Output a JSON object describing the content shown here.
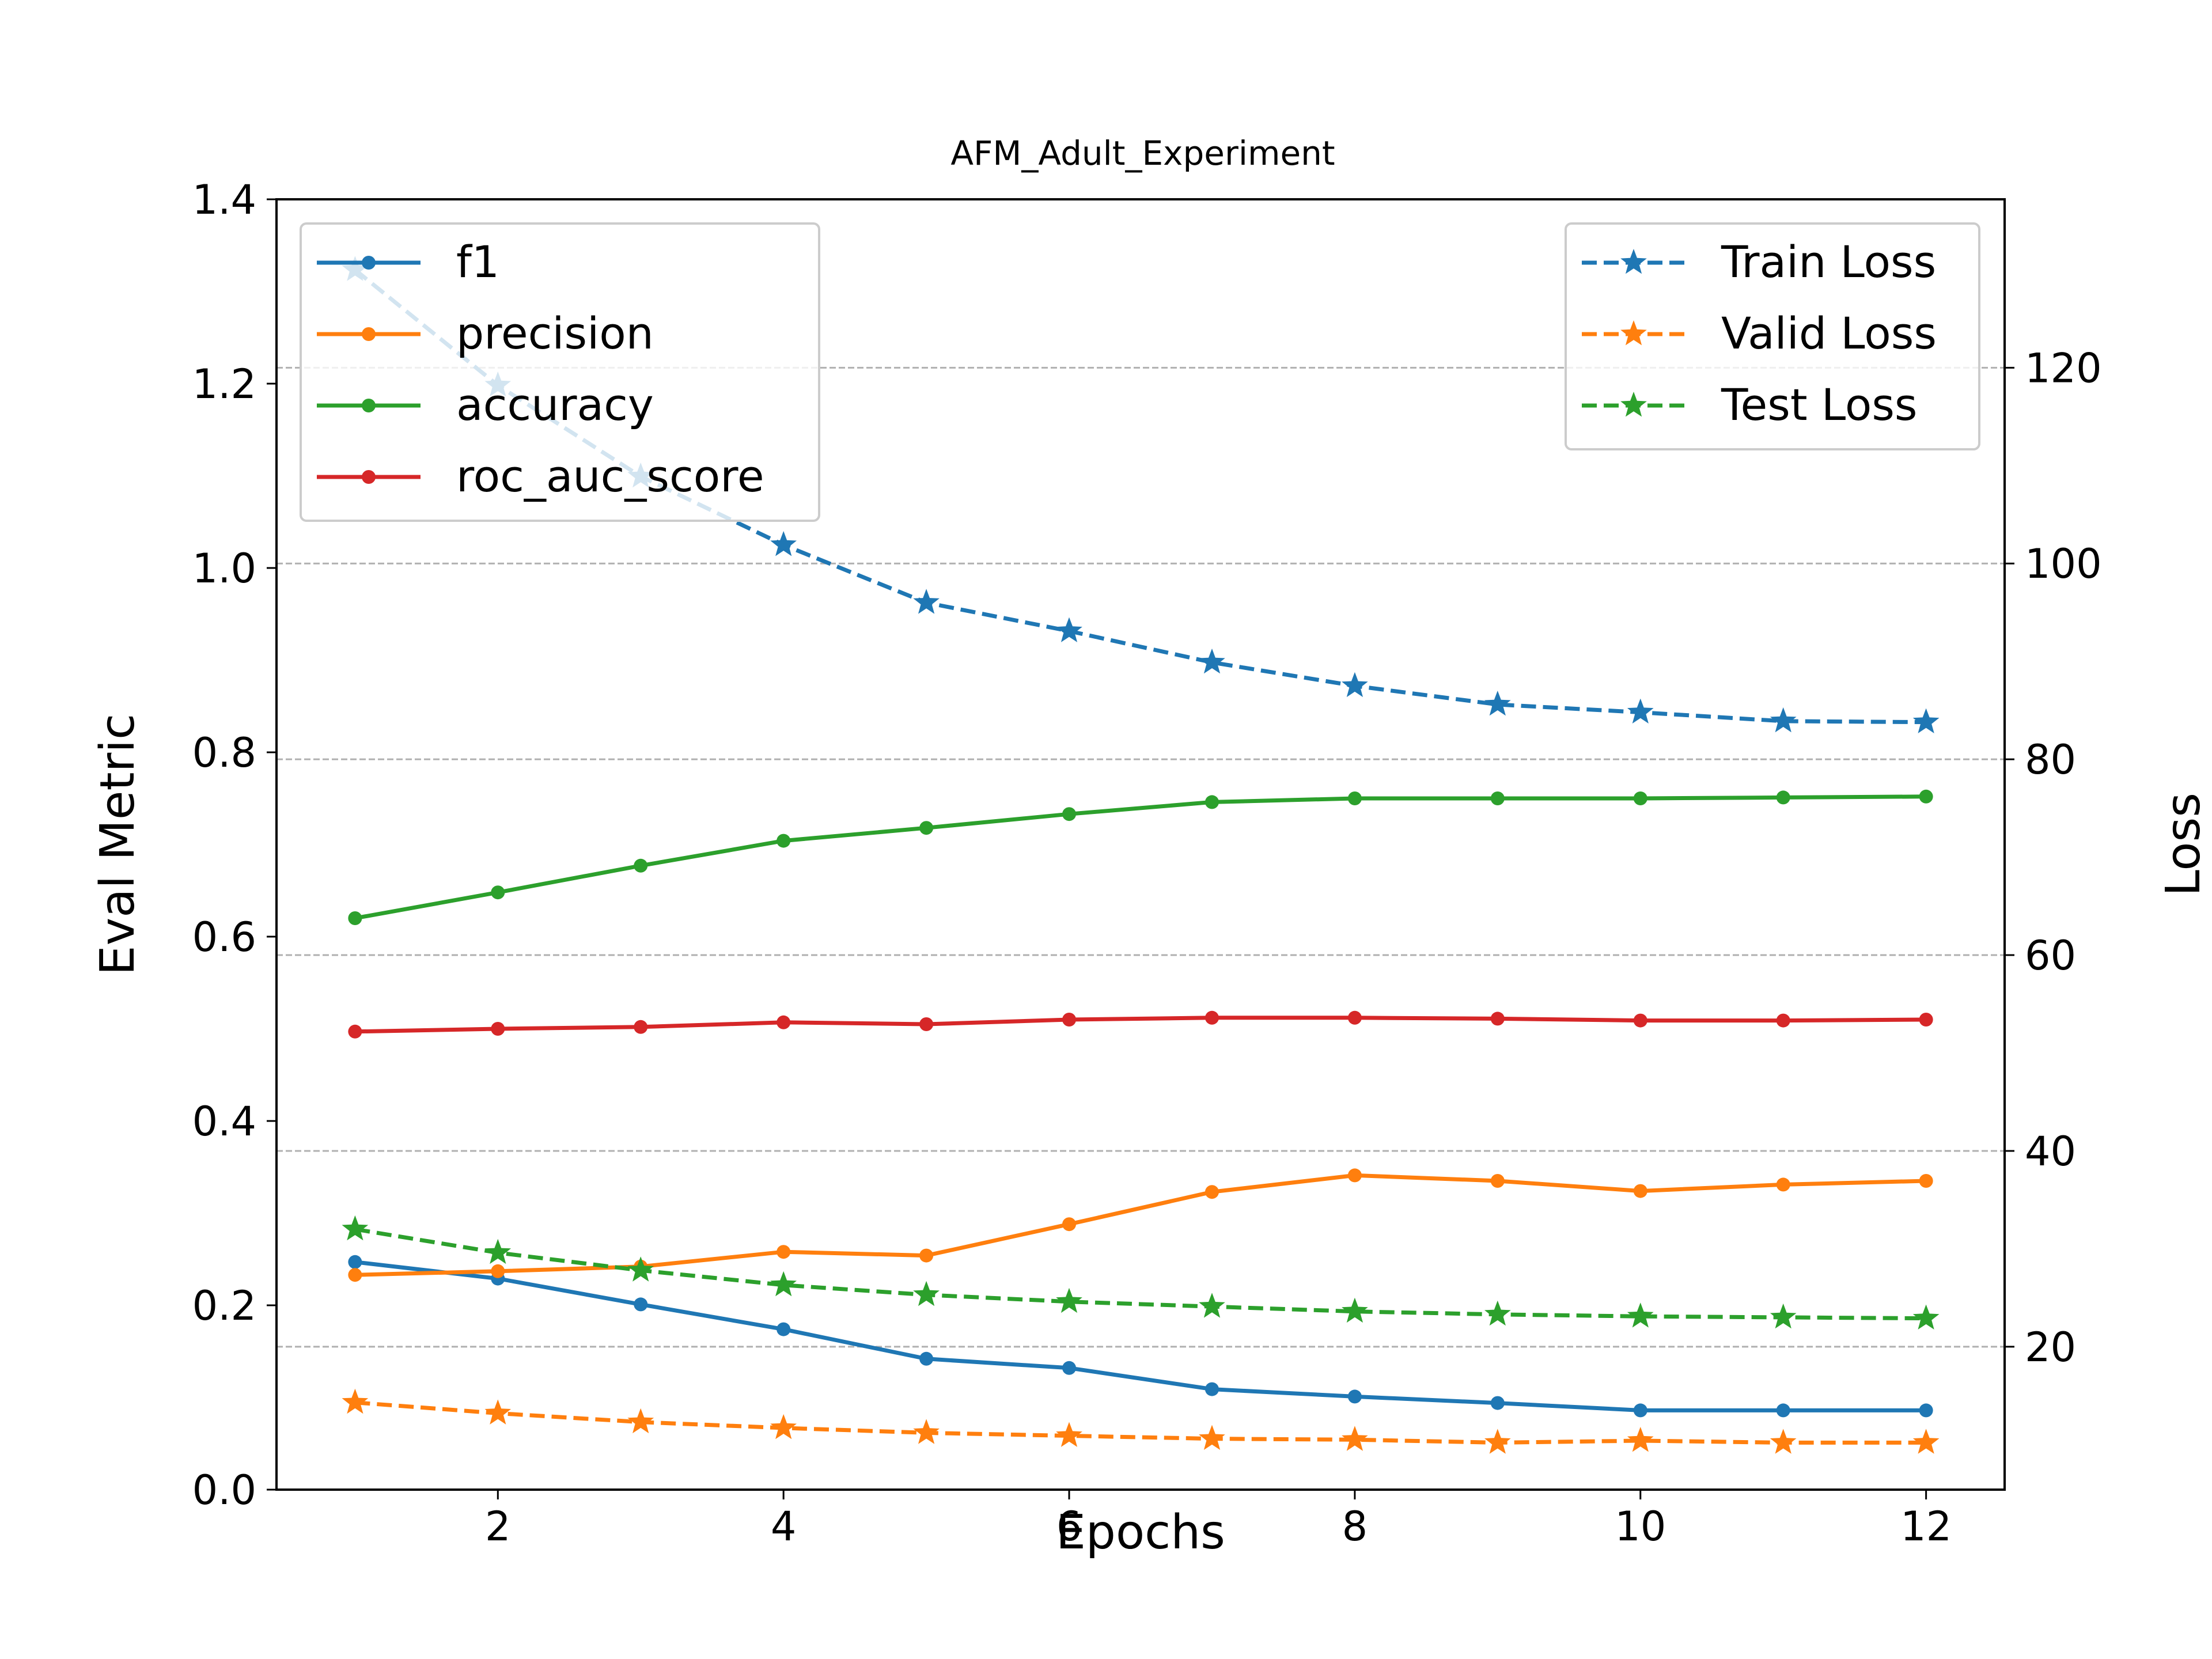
{
  "chart_data": {
    "type": "line",
    "title": "AFM_Adult_Experiment",
    "xlabel": "Epochs",
    "ylabel_left": "Eval Metric",
    "ylabel_right": "Loss",
    "x": [
      1,
      2,
      3,
      4,
      5,
      6,
      7,
      8,
      9,
      10,
      11,
      12
    ],
    "xlim": [
      0.45,
      12.55
    ],
    "xticks": [
      2,
      4,
      6,
      8,
      10,
      12
    ],
    "ylim_left": [
      0.0,
      1.4
    ],
    "yticks_left": [
      "0.0",
      "0.2",
      "0.4",
      "0.6",
      "0.8",
      "1.0",
      "1.2",
      "1.4"
    ],
    "ylim_right": [
      5.4,
      137.2
    ],
    "yticks_right": [
      "20",
      "40",
      "60",
      "80",
      "100",
      "120"
    ],
    "grid": "horizontal dashed at right-axis ticks",
    "legend_left_placement": "upper left",
    "legend_right_placement": "upper right",
    "series_left": [
      {
        "name": "f1",
        "color": "#1f77b4",
        "marker": "dot",
        "dash": "solid",
        "values": [
          0.247,
          0.229,
          0.201,
          0.174,
          0.142,
          0.132,
          0.109,
          0.101,
          0.094,
          0.086,
          0.086,
          0.086
        ]
      },
      {
        "name": "precision",
        "color": "#ff7f0e",
        "marker": "dot",
        "dash": "solid",
        "values": [
          0.233,
          0.237,
          0.242,
          0.258,
          0.254,
          0.288,
          0.323,
          0.341,
          0.335,
          0.324,
          0.331,
          0.335
        ]
      },
      {
        "name": "accuracy",
        "color": "#2ca02c",
        "marker": "dot",
        "dash": "solid",
        "values": [
          0.62,
          0.648,
          0.677,
          0.704,
          0.718,
          0.733,
          0.746,
          0.75,
          0.75,
          0.75,
          0.751,
          0.752
        ]
      },
      {
        "name": "roc_auc_score",
        "color": "#d62728",
        "marker": "dot",
        "dash": "solid",
        "values": [
          0.497,
          0.5,
          0.502,
          0.507,
          0.505,
          0.51,
          0.512,
          0.512,
          0.511,
          0.509,
          0.509,
          0.51
        ]
      }
    ],
    "series_right": [
      {
        "name": "Train Loss",
        "color": "#1f77b4",
        "marker": "star",
        "dash": "dashed",
        "values": [
          130.0,
          118.2,
          108.9,
          101.9,
          96.0,
          93.1,
          89.9,
          87.5,
          85.6,
          84.8,
          83.9,
          83.8
        ]
      },
      {
        "name": "Valid Loss",
        "color": "#ff7f0e",
        "marker": "star",
        "dash": "dashed",
        "values": [
          14.3,
          13.2,
          12.3,
          11.7,
          11.2,
          10.9,
          10.6,
          10.5,
          10.2,
          10.4,
          10.2,
          10.2
        ]
      },
      {
        "name": "Test Loss",
        "color": "#2ca02c",
        "marker": "star",
        "dash": "dashed",
        "values": [
          32.0,
          29.6,
          27.8,
          26.3,
          25.3,
          24.6,
          24.1,
          23.6,
          23.3,
          23.1,
          23.0,
          22.9
        ]
      }
    ]
  }
}
